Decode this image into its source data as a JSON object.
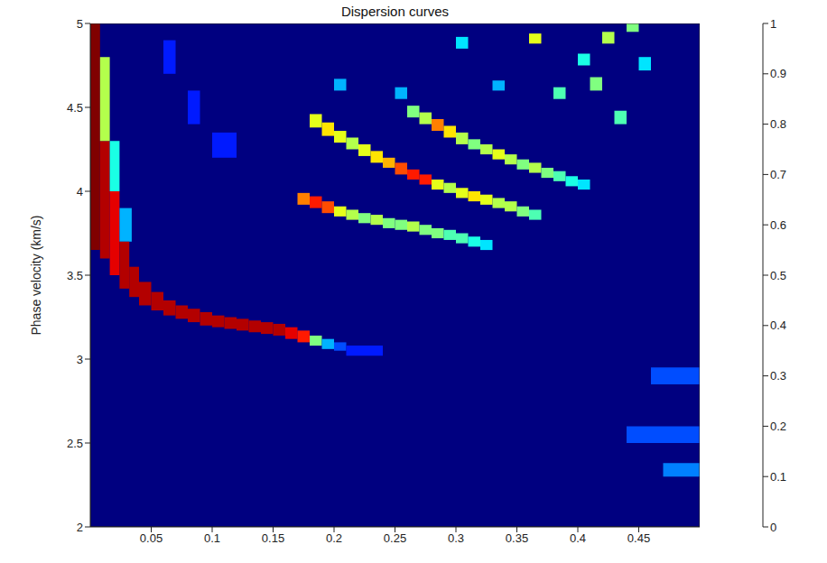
{
  "chart_data": {
    "type": "heatmap",
    "title": "Dispersion curves",
    "y_label": "Phase velocity (km/s)",
    "xlim": [
      0,
      0.5
    ],
    "xticks": [
      0.05,
      0.1,
      0.15,
      0.2,
      0.25,
      0.3,
      0.35,
      0.4,
      0.45
    ],
    "ylim": [
      2,
      5
    ],
    "yticks": [
      2,
      2.5,
      3,
      3.5,
      4,
      4.5,
      5
    ],
    "background": 0,
    "cells": [
      [
        0,
        0.008,
        3.65,
        5,
        1
      ],
      [
        0.008,
        0.016,
        3.6,
        4.3,
        0.95
      ],
      [
        0.008,
        0.016,
        4.3,
        4.8,
        0.55
      ],
      [
        0.016,
        0.024,
        3.5,
        4.0,
        0.9
      ],
      [
        0.016,
        0.024,
        4.0,
        4.3,
        0.4
      ],
      [
        0.024,
        0.034,
        3.7,
        3.9,
        0.3
      ],
      [
        0.024,
        0.032,
        3.42,
        3.7,
        0.95
      ],
      [
        0.032,
        0.04,
        3.37,
        3.55,
        0.95
      ],
      [
        0.04,
        0.05,
        3.32,
        3.46,
        0.95
      ],
      [
        0.05,
        0.06,
        3.29,
        3.4,
        0.95
      ],
      [
        0.06,
        0.07,
        3.26,
        3.35,
        0.95
      ],
      [
        0.07,
        0.08,
        3.24,
        3.32,
        0.95
      ],
      [
        0.08,
        0.09,
        3.22,
        3.3,
        0.95
      ],
      [
        0.09,
        0.1,
        3.2,
        3.28,
        0.95
      ],
      [
        0.1,
        0.11,
        3.19,
        3.26,
        0.95
      ],
      [
        0.11,
        0.12,
        3.18,
        3.25,
        0.95
      ],
      [
        0.12,
        0.13,
        3.17,
        3.24,
        0.95
      ],
      [
        0.13,
        0.14,
        3.16,
        3.23,
        0.95
      ],
      [
        0.14,
        0.15,
        3.15,
        3.22,
        0.95
      ],
      [
        0.15,
        0.16,
        3.14,
        3.21,
        0.95
      ],
      [
        0.16,
        0.17,
        3.12,
        3.19,
        0.9
      ],
      [
        0.17,
        0.18,
        3.1,
        3.17,
        0.85
      ],
      [
        0.18,
        0.19,
        3.08,
        3.14,
        0.5
      ],
      [
        0.19,
        0.2,
        3.06,
        3.12,
        0.3
      ],
      [
        0.2,
        0.21,
        3.05,
        3.1,
        0.2
      ],
      [
        0.21,
        0.24,
        3.02,
        3.08,
        0.15
      ],
      [
        0.06,
        0.07,
        4.7,
        4.9,
        0.15
      ],
      [
        0.08,
        0.09,
        4.4,
        4.6,
        0.15
      ],
      [
        0.1,
        0.12,
        4.2,
        4.35,
        0.15
      ],
      [
        0.17,
        0.18,
        3.92,
        3.99,
        0.75
      ],
      [
        0.18,
        0.19,
        3.9,
        3.97,
        0.85
      ],
      [
        0.19,
        0.2,
        3.87,
        3.94,
        0.8
      ],
      [
        0.2,
        0.21,
        3.85,
        3.91,
        0.6
      ],
      [
        0.21,
        0.22,
        3.83,
        3.89,
        0.55
      ],
      [
        0.22,
        0.23,
        3.81,
        3.87,
        0.5
      ],
      [
        0.23,
        0.24,
        3.8,
        3.86,
        0.55
      ],
      [
        0.24,
        0.25,
        3.78,
        3.84,
        0.5
      ],
      [
        0.25,
        0.26,
        3.77,
        3.83,
        0.5
      ],
      [
        0.26,
        0.27,
        3.76,
        3.82,
        0.55
      ],
      [
        0.27,
        0.28,
        3.74,
        3.8,
        0.5
      ],
      [
        0.28,
        0.29,
        3.72,
        3.78,
        0.5
      ],
      [
        0.29,
        0.3,
        3.71,
        3.77,
        0.45
      ],
      [
        0.3,
        0.31,
        3.69,
        3.75,
        0.45
      ],
      [
        0.31,
        0.32,
        3.67,
        3.73,
        0.4
      ],
      [
        0.32,
        0.33,
        3.65,
        3.71,
        0.35
      ],
      [
        0.18,
        0.19,
        4.38,
        4.46,
        0.6
      ],
      [
        0.19,
        0.2,
        4.33,
        4.41,
        0.65
      ],
      [
        0.2,
        0.21,
        4.29,
        4.36,
        0.6
      ],
      [
        0.21,
        0.22,
        4.25,
        4.32,
        0.55
      ],
      [
        0.22,
        0.23,
        4.21,
        4.28,
        0.6
      ],
      [
        0.23,
        0.24,
        4.17,
        4.24,
        0.65
      ],
      [
        0.24,
        0.25,
        4.14,
        4.2,
        0.7
      ],
      [
        0.25,
        0.26,
        4.1,
        4.17,
        0.8
      ],
      [
        0.26,
        0.27,
        4.07,
        4.13,
        0.85
      ],
      [
        0.27,
        0.28,
        4.04,
        4.1,
        0.85
      ],
      [
        0.28,
        0.29,
        4.01,
        4.07,
        0.6
      ],
      [
        0.29,
        0.3,
        3.99,
        4.05,
        0.55
      ],
      [
        0.3,
        0.31,
        3.96,
        4.02,
        0.6
      ],
      [
        0.31,
        0.32,
        3.94,
        4.0,
        0.65
      ],
      [
        0.32,
        0.33,
        3.92,
        3.98,
        0.6
      ],
      [
        0.33,
        0.34,
        3.9,
        3.96,
        0.55
      ],
      [
        0.34,
        0.35,
        3.88,
        3.94,
        0.55
      ],
      [
        0.35,
        0.36,
        3.85,
        3.91,
        0.5
      ],
      [
        0.36,
        0.37,
        3.83,
        3.89,
        0.45
      ],
      [
        0.26,
        0.27,
        4.44,
        4.51,
        0.5
      ],
      [
        0.27,
        0.28,
        4.4,
        4.47,
        0.55
      ],
      [
        0.28,
        0.29,
        4.36,
        4.43,
        0.75
      ],
      [
        0.29,
        0.3,
        4.32,
        4.39,
        0.65
      ],
      [
        0.3,
        0.31,
        4.28,
        4.35,
        0.55
      ],
      [
        0.31,
        0.32,
        4.25,
        4.31,
        0.5
      ],
      [
        0.32,
        0.33,
        4.22,
        4.28,
        0.55
      ],
      [
        0.33,
        0.34,
        4.19,
        4.25,
        0.6
      ],
      [
        0.34,
        0.35,
        4.16,
        4.22,
        0.55
      ],
      [
        0.35,
        0.36,
        4.13,
        4.19,
        0.5
      ],
      [
        0.36,
        0.37,
        4.11,
        4.17,
        0.55
      ],
      [
        0.37,
        0.38,
        4.08,
        4.14,
        0.5
      ],
      [
        0.38,
        0.39,
        4.06,
        4.12,
        0.45
      ],
      [
        0.39,
        0.4,
        4.03,
        4.09,
        0.4
      ],
      [
        0.4,
        0.41,
        4.01,
        4.07,
        0.35
      ],
      [
        0.36,
        0.37,
        4.88,
        4.94,
        0.6
      ],
      [
        0.38,
        0.39,
        4.55,
        4.62,
        0.45
      ],
      [
        0.41,
        0.42,
        4.6,
        4.68,
        0.5
      ],
      [
        0.42,
        0.43,
        4.88,
        4.95,
        0.55
      ],
      [
        0.43,
        0.44,
        4.4,
        4.48,
        0.45
      ],
      [
        0.44,
        0.45,
        4.95,
        5,
        0.5
      ],
      [
        0.45,
        0.46,
        4.72,
        4.8,
        0.35
      ],
      [
        0.4,
        0.41,
        4.75,
        4.82,
        0.4
      ],
      [
        0.3,
        0.31,
        4.85,
        4.92,
        0.35
      ],
      [
        0.33,
        0.34,
        4.6,
        4.66,
        0.3
      ],
      [
        0.2,
        0.21,
        4.6,
        4.67,
        0.3
      ],
      [
        0.25,
        0.26,
        4.55,
        4.62,
        0.3
      ],
      [
        0.44,
        0.5,
        2.5,
        2.6,
        0.2
      ],
      [
        0.46,
        0.5,
        2.85,
        2.95,
        0.2
      ],
      [
        0.47,
        0.5,
        2.3,
        2.38,
        0.25
      ]
    ],
    "colorbar_range": [
      0,
      1
    ],
    "colorbar_ticks": [
      0,
      0.1,
      0.2,
      0.3,
      0.4,
      0.5,
      0.6,
      0.7,
      0.8,
      0.9,
      1
    ]
  }
}
